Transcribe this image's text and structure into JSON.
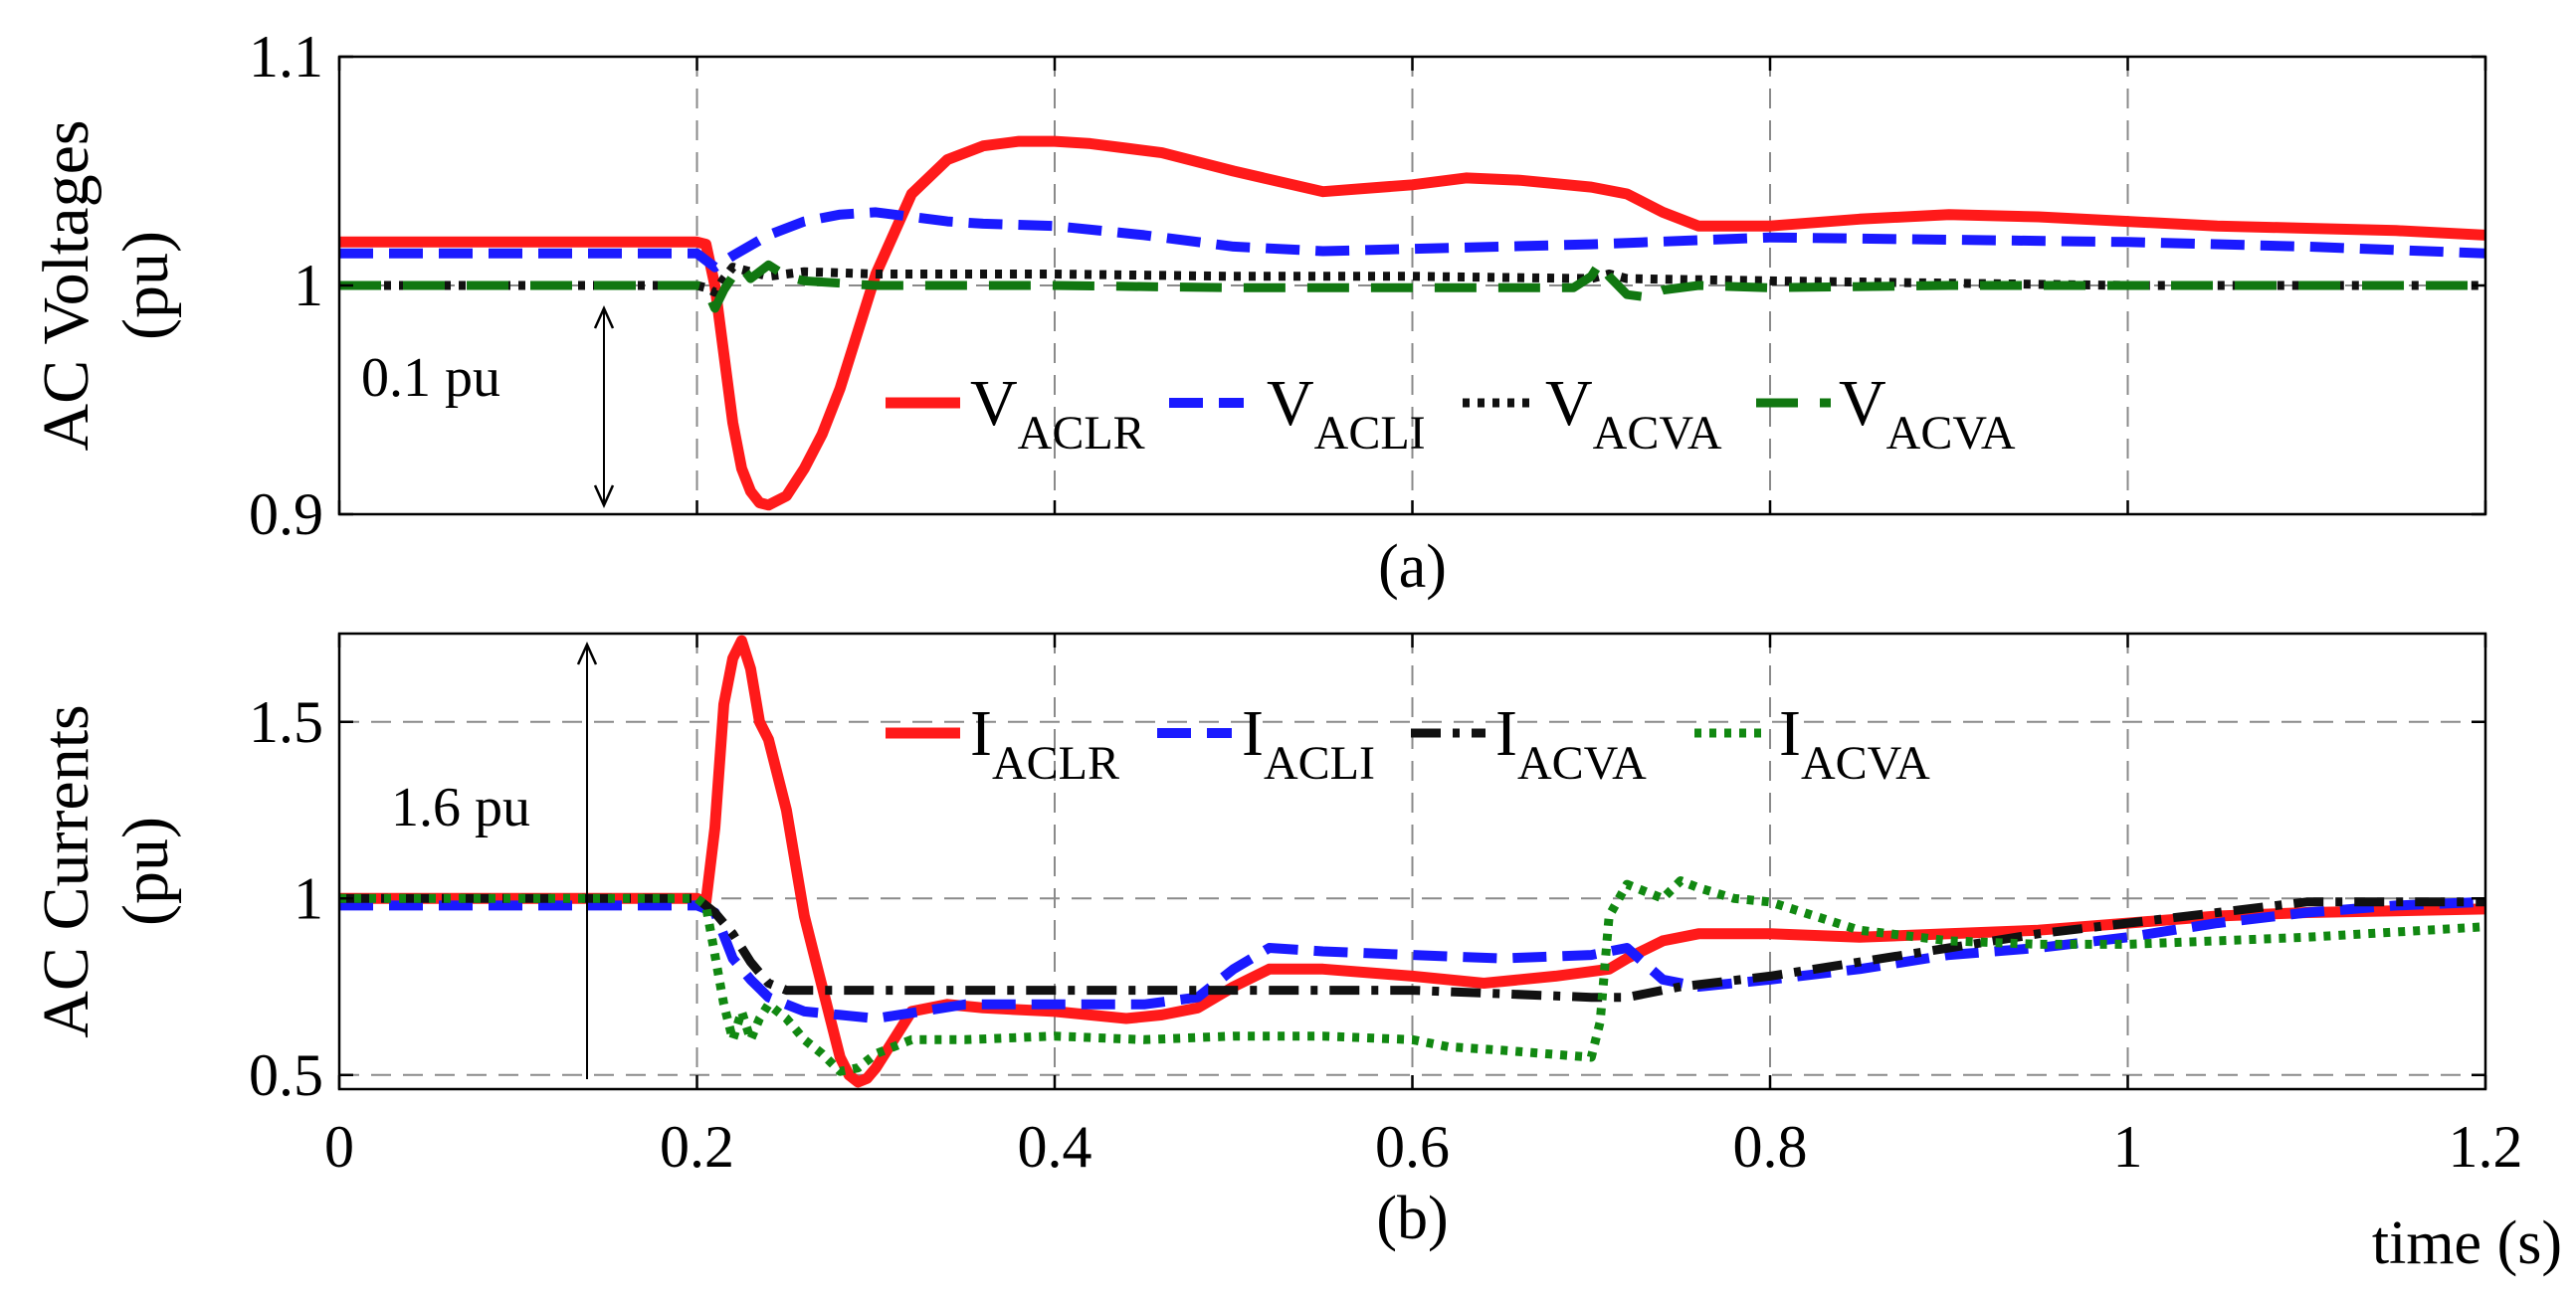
{
  "chart_data": [
    {
      "type": "line",
      "panel": "(a)",
      "ylabel": [
        "AC Voltages",
        "(pu)"
      ],
      "xlim": [
        0,
        1.2
      ],
      "ylim": [
        0.9,
        1.1
      ],
      "xticks": [
        0,
        0.2,
        0.4,
        0.6,
        0.8,
        1,
        1.2
      ],
      "yticks": [
        0.9,
        1,
        1.1
      ],
      "ytick_labels": [
        "0.9",
        "1",
        "1.1"
      ],
      "grid": true,
      "legend_position": "lower-center",
      "annotation": "0.1 pu",
      "series": [
        {
          "name": "V",
          "sub": "ACLR",
          "color": "#ff1a1a",
          "style": "solid",
          "x": [
            0,
            0.2,
            0.205,
            0.21,
            0.215,
            0.22,
            0.225,
            0.23,
            0.235,
            0.24,
            0.25,
            0.26,
            0.27,
            0.28,
            0.29,
            0.3,
            0.32,
            0.34,
            0.36,
            0.38,
            0.4,
            0.42,
            0.44,
            0.46,
            0.5,
            0.55,
            0.6,
            0.63,
            0.66,
            0.7,
            0.72,
            0.74,
            0.76,
            0.8,
            0.85,
            0.9,
            0.95,
            1.0,
            1.05,
            1.1,
            1.15,
            1.2
          ],
          "y": [
            1.019,
            1.019,
            1.018,
            1.0,
            0.97,
            0.94,
            0.92,
            0.91,
            0.905,
            0.904,
            0.908,
            0.92,
            0.935,
            0.955,
            0.98,
            1.005,
            1.04,
            1.055,
            1.061,
            1.063,
            1.063,
            1.062,
            1.06,
            1.058,
            1.05,
            1.041,
            1.044,
            1.047,
            1.046,
            1.043,
            1.04,
            1.032,
            1.026,
            1.026,
            1.029,
            1.031,
            1.03,
            1.028,
            1.026,
            1.025,
            1.024,
            1.022
          ]
        },
        {
          "name": "V",
          "sub": "ACLI",
          "color": "#1a1aff",
          "style": "dash",
          "x": [
            0,
            0.2,
            0.21,
            0.22,
            0.24,
            0.26,
            0.28,
            0.3,
            0.32,
            0.34,
            0.36,
            0.4,
            0.45,
            0.5,
            0.55,
            0.6,
            0.7,
            0.8,
            0.9,
            1.0,
            1.1,
            1.2
          ],
          "y": [
            1.014,
            1.014,
            1.008,
            1.013,
            1.022,
            1.028,
            1.031,
            1.032,
            1.03,
            1.028,
            1.027,
            1.026,
            1.022,
            1.017,
            1.015,
            1.016,
            1.018,
            1.021,
            1.02,
            1.019,
            1.017,
            1.014
          ]
        },
        {
          "name": "V",
          "sub": "ACVA",
          "color": "#111111",
          "style": "dot",
          "x": [
            0,
            0.2,
            0.205,
            0.21,
            0.215,
            0.22,
            0.23,
            0.24,
            0.26,
            0.3,
            0.4,
            0.5,
            0.6,
            0.7,
            0.71,
            0.72,
            0.8,
            0.9,
            1.0,
            1.1,
            1.2
          ],
          "y": [
            1.0,
            1.0,
            0.999,
            0.997,
            1.003,
            1.008,
            1.006,
            1.004,
            1.006,
            1.005,
            1.005,
            1.004,
            1.004,
            1.003,
            1.005,
            1.003,
            1.002,
            1.001,
            1.0,
            1.0,
            1.0
          ]
        },
        {
          "name": "V",
          "sub": "ACVA",
          "color": "#117711",
          "style": "longdash",
          "x": [
            0,
            0.2,
            0.205,
            0.21,
            0.215,
            0.22,
            0.225,
            0.23,
            0.235,
            0.24,
            0.25,
            0.26,
            0.28,
            0.3,
            0.4,
            0.5,
            0.6,
            0.69,
            0.7,
            0.705,
            0.71,
            0.72,
            0.73,
            0.74,
            0.76,
            0.8,
            0.9,
            1.0,
            1.2
          ],
          "y": [
            1.0,
            1.0,
            0.999,
            0.99,
            0.998,
            1.004,
            1.008,
            1.003,
            1.006,
            1.009,
            1.004,
            1.002,
            1.001,
            1.0,
            1.0,
            0.999,
            0.999,
            0.999,
            1.004,
            1.01,
            1.004,
            0.996,
            0.995,
            0.998,
            1.0,
            0.999,
            1.0,
            1.0,
            1.0
          ]
        }
      ]
    },
    {
      "type": "line",
      "panel": "(b)",
      "ylabel": [
        "AC Currents",
        "(pu)"
      ],
      "xlabel": "time (s)",
      "xlim": [
        0,
        1.2
      ],
      "ylim": [
        0.46,
        1.75
      ],
      "xticks": [
        0,
        0.2,
        0.4,
        0.6,
        0.8,
        1,
        1.2
      ],
      "xtick_labels": [
        "0",
        "0.2",
        "0.4",
        "0.6",
        "0.8",
        "1",
        "1.2"
      ],
      "yticks": [
        0.5,
        1,
        1.5
      ],
      "ytick_labels": [
        "0.5",
        "1",
        "1.5"
      ],
      "grid": true,
      "legend_position": "top-center",
      "annotation": "1.6 pu",
      "series": [
        {
          "name": "I",
          "sub": "ACLR",
          "color": "#ff1a1a",
          "style": "solid",
          "x": [
            0,
            0.2,
            0.205,
            0.21,
            0.215,
            0.22,
            0.225,
            0.23,
            0.235,
            0.24,
            0.245,
            0.25,
            0.255,
            0.26,
            0.265,
            0.27,
            0.275,
            0.28,
            0.285,
            0.29,
            0.295,
            0.3,
            0.31,
            0.32,
            0.34,
            0.36,
            0.4,
            0.44,
            0.46,
            0.48,
            0.5,
            0.52,
            0.55,
            0.6,
            0.64,
            0.68,
            0.71,
            0.72,
            0.74,
            0.76,
            0.8,
            0.85,
            0.9,
            0.95,
            1.0,
            1.05,
            1.1,
            1.2
          ],
          "y": [
            1.0,
            1.0,
            0.99,
            1.2,
            1.55,
            1.68,
            1.73,
            1.65,
            1.5,
            1.45,
            1.35,
            1.25,
            1.1,
            0.95,
            0.85,
            0.75,
            0.65,
            0.55,
            0.5,
            0.48,
            0.49,
            0.52,
            0.6,
            0.68,
            0.7,
            0.69,
            0.68,
            0.66,
            0.67,
            0.69,
            0.75,
            0.8,
            0.8,
            0.78,
            0.76,
            0.78,
            0.8,
            0.83,
            0.88,
            0.9,
            0.9,
            0.89,
            0.9,
            0.91,
            0.93,
            0.95,
            0.96,
            0.97
          ]
        },
        {
          "name": "I",
          "sub": "ACLI",
          "color": "#1a1aff",
          "style": "dash",
          "x": [
            0,
            0.2,
            0.21,
            0.22,
            0.23,
            0.24,
            0.26,
            0.28,
            0.3,
            0.35,
            0.4,
            0.45,
            0.48,
            0.5,
            0.52,
            0.55,
            0.6,
            0.65,
            0.7,
            0.72,
            0.74,
            0.76,
            0.8,
            0.85,
            0.9,
            0.95,
            1.0,
            1.05,
            1.1,
            1.15,
            1.2
          ],
          "y": [
            0.98,
            0.98,
            0.96,
            0.83,
            0.77,
            0.72,
            0.68,
            0.67,
            0.66,
            0.7,
            0.7,
            0.7,
            0.72,
            0.8,
            0.86,
            0.85,
            0.84,
            0.83,
            0.84,
            0.86,
            0.77,
            0.75,
            0.77,
            0.8,
            0.84,
            0.86,
            0.89,
            0.93,
            0.96,
            0.98,
            0.99
          ]
        },
        {
          "name": "I",
          "sub": "ACVA",
          "color": "#111111",
          "style": "dashdot",
          "x": [
            0,
            0.2,
            0.21,
            0.22,
            0.23,
            0.24,
            0.25,
            0.27,
            0.3,
            0.35,
            0.4,
            0.45,
            0.5,
            0.55,
            0.6,
            0.65,
            0.7,
            0.72,
            0.75,
            0.8,
            0.85,
            0.9,
            0.95,
            1.0,
            1.05,
            1.1,
            1.15,
            1.2
          ],
          "y": [
            1.0,
            1.0,
            0.96,
            0.9,
            0.82,
            0.76,
            0.74,
            0.74,
            0.74,
            0.74,
            0.74,
            0.74,
            0.74,
            0.74,
            0.74,
            0.73,
            0.72,
            0.72,
            0.75,
            0.78,
            0.82,
            0.86,
            0.9,
            0.93,
            0.96,
            0.99,
            0.99,
            0.99
          ]
        },
        {
          "name": "I",
          "sub": "ACVA",
          "color": "#118811",
          "style": "dot",
          "x": [
            0,
            0.2,
            0.205,
            0.21,
            0.215,
            0.22,
            0.225,
            0.23,
            0.235,
            0.24,
            0.25,
            0.26,
            0.27,
            0.28,
            0.29,
            0.3,
            0.32,
            0.35,
            0.4,
            0.45,
            0.5,
            0.55,
            0.6,
            0.62,
            0.65,
            0.7,
            0.705,
            0.71,
            0.72,
            0.73,
            0.74,
            0.75,
            0.76,
            0.78,
            0.8,
            0.85,
            0.9,
            0.95,
            1.0,
            1.05,
            1.1,
            1.2
          ],
          "y": [
            1.0,
            1.0,
            0.98,
            0.84,
            0.7,
            0.6,
            0.68,
            0.6,
            0.66,
            0.7,
            0.66,
            0.6,
            0.56,
            0.51,
            0.52,
            0.56,
            0.6,
            0.6,
            0.61,
            0.6,
            0.61,
            0.61,
            0.6,
            0.58,
            0.57,
            0.55,
            0.65,
            0.95,
            1.04,
            1.02,
            1.0,
            1.05,
            1.03,
            1.0,
            0.99,
            0.91,
            0.88,
            0.87,
            0.87,
            0.88,
            0.89,
            0.92
          ]
        }
      ]
    }
  ],
  "captions": {
    "a": "(a)",
    "b": "(b)"
  }
}
